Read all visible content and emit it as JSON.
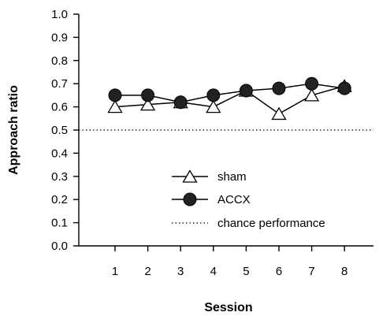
{
  "chart_data": {
    "type": "line",
    "title": "",
    "xlabel": "Session",
    "ylabel": "Approach ratio",
    "x": [
      1,
      2,
      3,
      4,
      5,
      6,
      7,
      8
    ],
    "ylim": [
      0.0,
      1.0
    ],
    "yticks": [
      "0.0",
      "0.1",
      "0.2",
      "0.3",
      "0.4",
      "0.5",
      "0.6",
      "0.7",
      "0.8",
      "0.9",
      "1.0"
    ],
    "grid": false,
    "legend_position": "center-bottom",
    "series": [
      {
        "name": "sham",
        "marker": "open-triangle",
        "color": "#000000",
        "values": [
          0.6,
          0.61,
          0.62,
          0.6,
          0.67,
          0.57,
          0.65,
          0.69
        ]
      },
      {
        "name": "ACCX",
        "marker": "filled-circle",
        "color": "#000000",
        "values": [
          0.65,
          0.65,
          0.62,
          0.65,
          0.67,
          0.68,
          0.7,
          0.68
        ]
      }
    ],
    "reference_line": {
      "name": "chance performance",
      "y": 0.5,
      "style": "dotted"
    }
  }
}
